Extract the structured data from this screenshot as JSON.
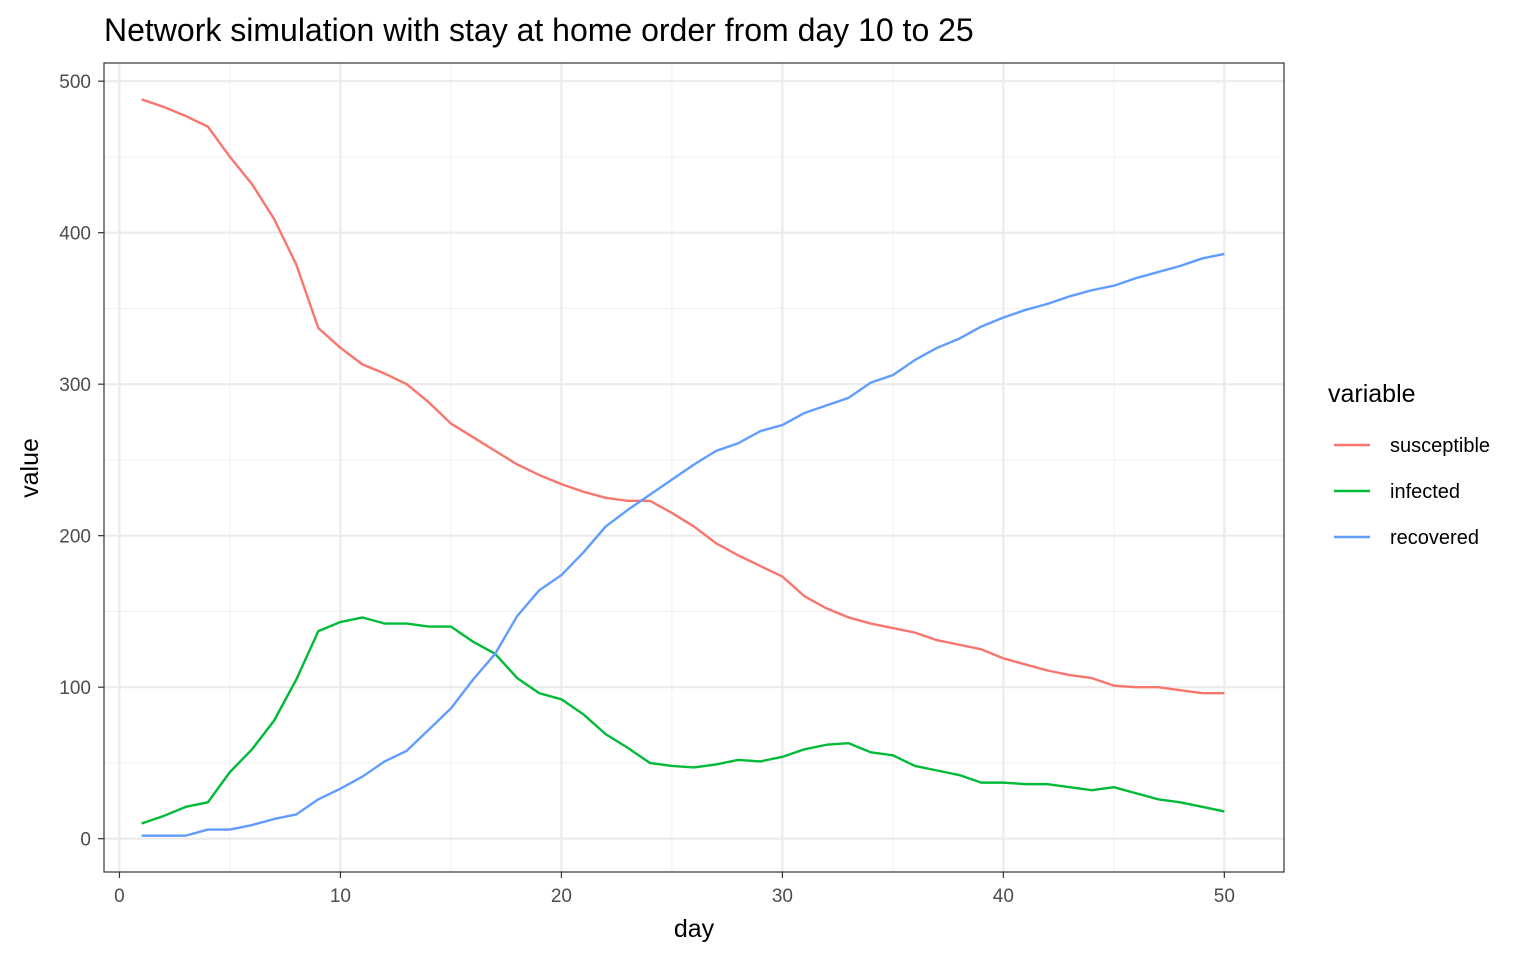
{
  "chart_data": {
    "type": "line",
    "title": "Network simulation with stay at home order from day 10 to 25",
    "xlabel": "day",
    "ylabel": "value",
    "xlim": [
      -0.7,
      52.7
    ],
    "ylim": [
      -22,
      512
    ],
    "x_ticks": [
      0,
      10,
      20,
      30,
      40,
      50
    ],
    "y_ticks": [
      0,
      100,
      200,
      300,
      400,
      500
    ],
    "grid": true,
    "legend": {
      "title": "variable",
      "position": "right"
    },
    "x": [
      1,
      2,
      3,
      4,
      5,
      6,
      7,
      8,
      9,
      10,
      11,
      12,
      13,
      14,
      15,
      16,
      17,
      18,
      19,
      20,
      21,
      22,
      23,
      24,
      25,
      26,
      27,
      28,
      29,
      30,
      31,
      32,
      33,
      34,
      35,
      36,
      37,
      38,
      39,
      40,
      41,
      42,
      43,
      44,
      45,
      46,
      47,
      48,
      49,
      50
    ],
    "series": [
      {
        "name": "susceptible",
        "color": "#F8766D",
        "values": [
          488,
          483,
          477,
          470,
          450,
          432,
          409,
          379,
          337,
          324,
          313,
          307,
          300,
          288,
          274,
          265,
          256,
          247,
          240,
          234,
          229,
          225,
          223,
          223,
          215,
          206,
          195,
          187,
          180,
          173,
          160,
          152,
          146,
          142,
          139,
          136,
          131,
          128,
          125,
          119,
          115,
          111,
          108,
          106,
          101,
          100,
          100,
          98,
          96,
          96
        ]
      },
      {
        "name": "infected",
        "color": "#00BA38",
        "values": [
          10,
          15,
          21,
          24,
          44,
          59,
          78,
          105,
          137,
          143,
          146,
          142,
          142,
          140,
          140,
          130,
          122,
          106,
          96,
          92,
          82,
          69,
          60,
          50,
          48,
          47,
          49,
          52,
          51,
          54,
          59,
          62,
          63,
          57,
          55,
          48,
          45,
          42,
          37,
          37,
          36,
          36,
          34,
          32,
          34,
          30,
          26,
          24,
          21,
          18
        ]
      },
      {
        "name": "recovered",
        "color": "#619CFF",
        "values": [
          2,
          2,
          2,
          6,
          6,
          9,
          13,
          16,
          26,
          33,
          41,
          51,
          58,
          72,
          86,
          105,
          122,
          147,
          164,
          174,
          189,
          206,
          217,
          227,
          237,
          247,
          256,
          261,
          269,
          273,
          281,
          286,
          291,
          301,
          306,
          316,
          324,
          330,
          338,
          344,
          349,
          353,
          358,
          362,
          365,
          370,
          374,
          378,
          383,
          386
        ]
      }
    ]
  }
}
